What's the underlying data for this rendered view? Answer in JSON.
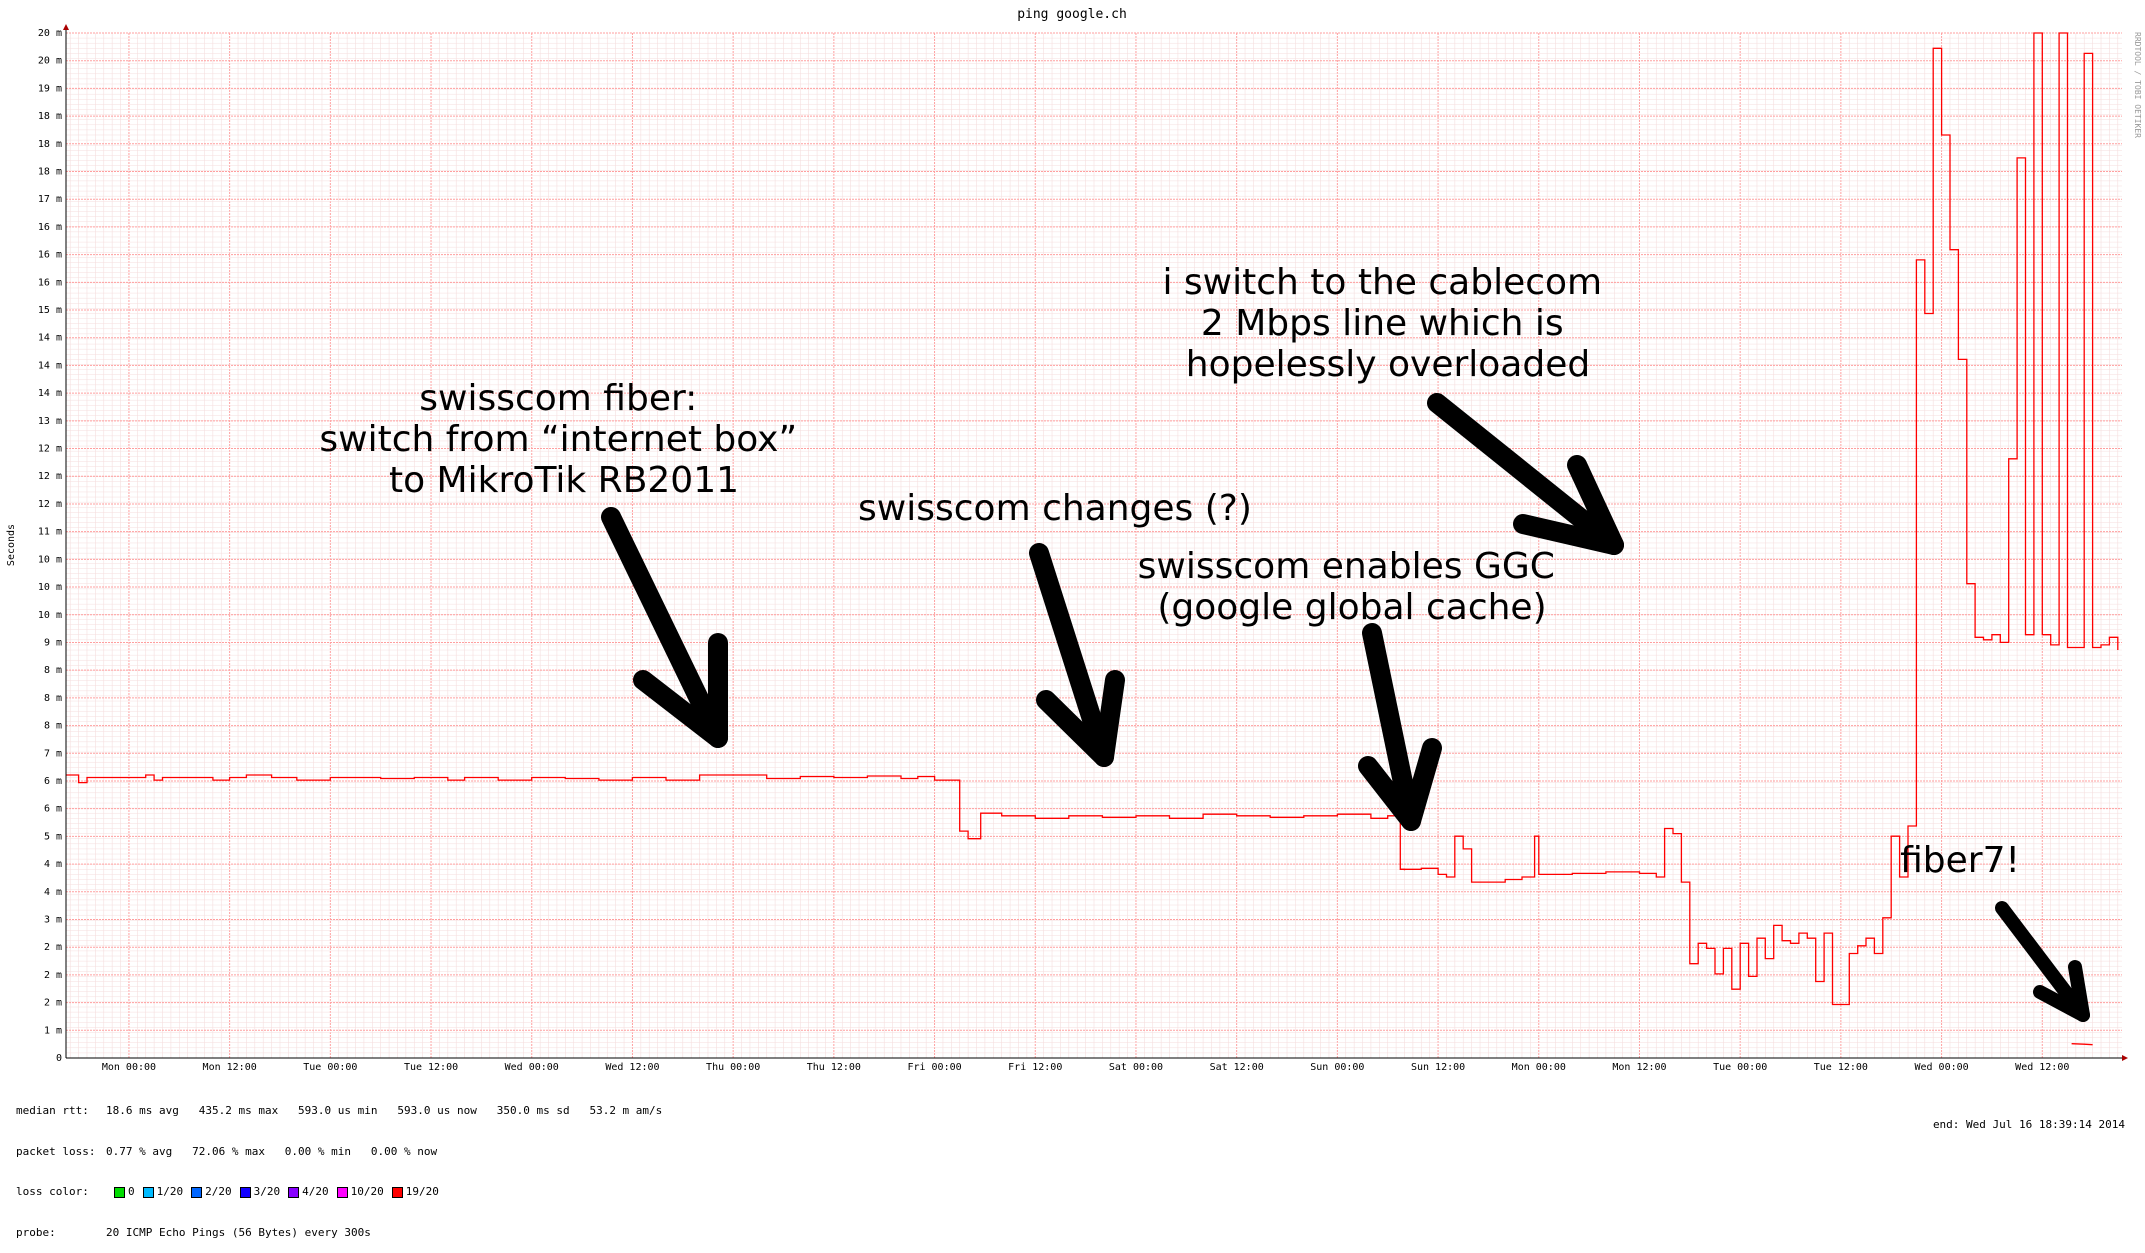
{
  "chart_data": {
    "type": "line",
    "title": "ping google.ch",
    "ylabel": "Seconds",
    "watermark": "RRDTOOL / TOBI OETIKER",
    "y_ticks": [
      "0",
      "1 m",
      "2 m",
      "2 m",
      "2 m",
      "3 m",
      "4 m",
      "4 m",
      "5 m",
      "6 m",
      "6 m",
      "7 m",
      "8 m",
      "8 m",
      "8 m",
      "9 m",
      "10 m",
      "10 m",
      "10 m",
      "11 m",
      "12 m",
      "12 m",
      "12 m",
      "13 m",
      "14 m",
      "14 m",
      "14 m",
      "15 m",
      "16 m",
      "16 m",
      "16 m",
      "17 m",
      "18 m",
      "18 m",
      "18 m",
      "19 m",
      "20 m",
      "20 m"
    ],
    "y_unit": "ms",
    "ylim": [
      0,
      20.1
    ],
    "x_ticks": [
      "Mon 00:00",
      "Mon 12:00",
      "Tue 00:00",
      "Tue 12:00",
      "Wed 00:00",
      "Wed 12:00",
      "Thu 00:00",
      "Thu 12:00",
      "Fri 00:00",
      "Fri 12:00",
      "Sat 00:00",
      "Sat 12:00",
      "Sun 00:00",
      "Sun 12:00",
      "Mon 00:00",
      "Mon 12:00",
      "Tue 00:00",
      "Tue 12:00",
      "Wed 00:00",
      "Wed 12:00"
    ],
    "x_unit": "hours since first Mon 00:00",
    "xlim": [
      -7.5,
      237.5
    ],
    "series": [
      {
        "color": "#ff0000",
        "points": [
          [
            -7.5,
            5.55
          ],
          [
            -6,
            5.4
          ],
          [
            -5,
            5.5
          ],
          [
            -3,
            5.5
          ],
          [
            2,
            5.55
          ],
          [
            3,
            5.45
          ],
          [
            4,
            5.5
          ],
          [
            6,
            5.5
          ],
          [
            10,
            5.45
          ],
          [
            12,
            5.5
          ],
          [
            14,
            5.55
          ],
          [
            17,
            5.5
          ],
          [
            20,
            5.45
          ],
          [
            24,
            5.5
          ],
          [
            30,
            5.48
          ],
          [
            34,
            5.5
          ],
          [
            38,
            5.45
          ],
          [
            40,
            5.5
          ],
          [
            44,
            5.45
          ],
          [
            48,
            5.5
          ],
          [
            52,
            5.48
          ],
          [
            56,
            5.45
          ],
          [
            60,
            5.5
          ],
          [
            64,
            5.45
          ],
          [
            68,
            5.55
          ],
          [
            72,
            5.55
          ],
          [
            76,
            5.48
          ],
          [
            80,
            5.52
          ],
          [
            84,
            5.5
          ],
          [
            88,
            5.53
          ],
          [
            92,
            5.48
          ],
          [
            94,
            5.52
          ],
          [
            96,
            5.45
          ],
          [
            99,
            5.45
          ],
          [
            99,
            4.45
          ],
          [
            100,
            4.3
          ],
          [
            101.5,
            4.3
          ],
          [
            101.5,
            4.8
          ],
          [
            104,
            4.75
          ],
          [
            108,
            4.7
          ],
          [
            112,
            4.75
          ],
          [
            116,
            4.72
          ],
          [
            120,
            4.75
          ],
          [
            124,
            4.7
          ],
          [
            128,
            4.78
          ],
          [
            132,
            4.75
          ],
          [
            136,
            4.72
          ],
          [
            140,
            4.75
          ],
          [
            144,
            4.78
          ],
          [
            148,
            4.7
          ],
          [
            150,
            4.75
          ],
          [
            151.5,
            4.8
          ],
          [
            151.5,
            4.7
          ],
          [
            151.5,
            3.7
          ],
          [
            154,
            3.72
          ],
          [
            156,
            3.6
          ],
          [
            157,
            3.55
          ],
          [
            158,
            4.35
          ],
          [
            159,
            4.1
          ],
          [
            160,
            3.45
          ],
          [
            164,
            3.5
          ],
          [
            166,
            3.55
          ],
          [
            167.5,
            4.35
          ],
          [
            168,
            3.6
          ],
          [
            172,
            3.62
          ],
          [
            176,
            3.65
          ],
          [
            180,
            3.62
          ],
          [
            182,
            3.55
          ],
          [
            183,
            4.5
          ],
          [
            184,
            4.4
          ],
          [
            185,
            3.45
          ],
          [
            186,
            1.85
          ],
          [
            187,
            2.25
          ],
          [
            188,
            2.15
          ],
          [
            189,
            1.65
          ],
          [
            190,
            2.15
          ],
          [
            191,
            1.35
          ],
          [
            192,
            2.25
          ],
          [
            193,
            1.6
          ],
          [
            194,
            2.35
          ],
          [
            195,
            1.95
          ],
          [
            196,
            2.6
          ],
          [
            197,
            2.3
          ],
          [
            198,
            2.25
          ],
          [
            199,
            2.45
          ],
          [
            200,
            2.35
          ],
          [
            201,
            1.5
          ],
          [
            202,
            2.45
          ],
          [
            203,
            1.05
          ],
          [
            204,
            1.05
          ],
          [
            205,
            2.05
          ],
          [
            206,
            2.2
          ],
          [
            207,
            2.35
          ],
          [
            208,
            2.05
          ],
          [
            209,
            2.75
          ],
          [
            210,
            4.35
          ],
          [
            211,
            3.55
          ],
          [
            212,
            4.55
          ],
          [
            213,
            15.65
          ],
          [
            214,
            14.6
          ],
          [
            215,
            19.8
          ],
          [
            216,
            18.1
          ],
          [
            217,
            15.85
          ],
          [
            218,
            13.7
          ],
          [
            219,
            9.3
          ],
          [
            220,
            8.25
          ],
          [
            221,
            8.2
          ],
          [
            222,
            8.3
          ],
          [
            223,
            8.15
          ],
          [
            224,
            11.75
          ],
          [
            225,
            17.65
          ],
          [
            226,
            8.3
          ],
          [
            227,
            20.1
          ],
          [
            228,
            8.3
          ],
          [
            229,
            8.1
          ],
          [
            230,
            20.1
          ],
          [
            231,
            8.05
          ],
          [
            232,
            8.05
          ],
          [
            233,
            19.7
          ],
          [
            234,
            8.05
          ],
          [
            235,
            8.1
          ],
          [
            236,
            8.25
          ],
          [
            237,
            8.0
          ]
        ]
      },
      {
        "color": "#ff0000",
        "points": [
          [
            151.5,
            3.7
          ],
          [
            152,
            3.68
          ]
        ]
      }
    ]
  },
  "annotations": {
    "swisscom_fiber": [
      "swisscom fiber:",
      "switch from “internet box”",
      "to MikroTik RB2011"
    ],
    "swisscom_changes": [
      "swisscom changes (?)"
    ],
    "swisscom_ggc": [
      "swisscom enables GGC",
      "(google global cache)"
    ],
    "cablecom": [
      "i switch to the cablecom",
      "2 Mbps line which is",
      "hopelessly overloaded"
    ],
    "fiber7": [
      "fiber7!"
    ]
  },
  "footer": {
    "median_rtt_label": "median rtt:",
    "median_rtt_value": "18.6 ms avg   435.2 ms max   593.0 us min   593.0 us now   350.0 ms sd   53.2 m am/s",
    "packet_loss_label": "packet loss:",
    "packet_loss_value": "0.77 % avg   72.06 % max   0.00 % min   0.00 % now",
    "loss_color_label": "loss color:",
    "loss_colors": [
      {
        "label": "0",
        "color": "#00dd00"
      },
      {
        "label": "1/20",
        "color": "#00bbff"
      },
      {
        "label": "2/20",
        "color": "#0066ff"
      },
      {
        "label": "3/20",
        "color": "#1100ff"
      },
      {
        "label": "4/20",
        "color": "#8800ff"
      },
      {
        "label": "10/20",
        "color": "#ff00ff"
      },
      {
        "label": "19/20",
        "color": "#ff0000"
      }
    ],
    "probe_label": "probe:",
    "probe_value": "20 ICMP Echo Pings (56 Bytes) every 300s",
    "end_text": "end: Wed Jul 16 18:39:14 2014"
  }
}
